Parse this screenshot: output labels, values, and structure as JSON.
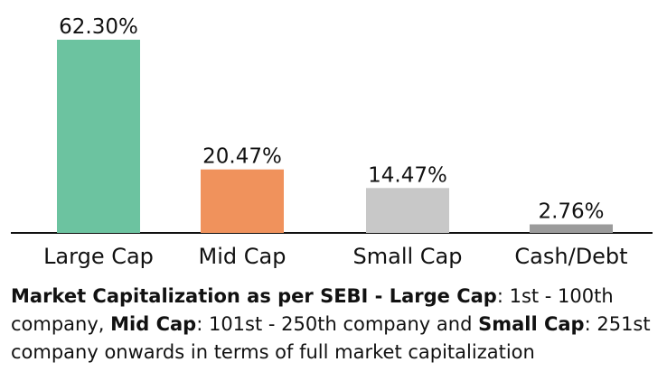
{
  "chart_data": {
    "type": "bar",
    "categories": [
      "Large Cap",
      "Mid Cap",
      "Small Cap",
      "Cash/Debt"
    ],
    "values": [
      62.3,
      20.47,
      14.47,
      2.76
    ],
    "value_labels": [
      "62.30%",
      "20.47%",
      "14.47%",
      "2.76%"
    ],
    "colors": [
      "#6cc3a0",
      "#f0925c",
      "#c8c8c8",
      "#9b9b9b"
    ],
    "ylim": [
      0,
      62.3
    ],
    "grid": false,
    "legend": "none"
  },
  "footnote": {
    "segments": [
      {
        "text": "Market Capitalization as per SEBI - ",
        "bold": true
      },
      {
        "text": "Large Cap",
        "bold": true
      },
      {
        "text": ": 1st - 100th company, ",
        "bold": false
      },
      {
        "text": "Mid Cap",
        "bold": true
      },
      {
        "text": ": 101st - 250th company and ",
        "bold": false
      },
      {
        "text": "Small Cap",
        "bold": true
      },
      {
        "text": ": 251st company onwards in terms of full market capitalization",
        "bold": false
      }
    ]
  }
}
